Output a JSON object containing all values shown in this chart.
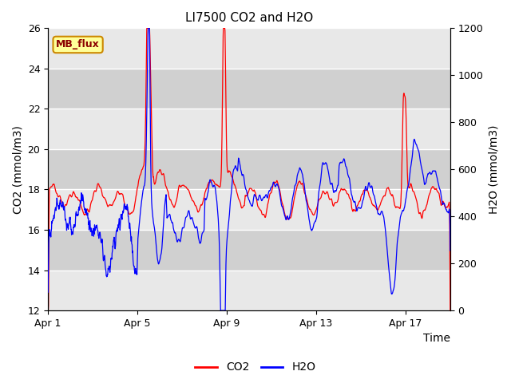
{
  "title": "LI7500 CO2 and H2O",
  "xlabel": "Time",
  "ylabel_left": "CO2 (mmol/m3)",
  "ylabel_right": "H2O (mmol/m3)",
  "ylim_left": [
    12,
    26
  ],
  "ylim_right": [
    0,
    1200
  ],
  "yticks_left": [
    12,
    14,
    16,
    18,
    20,
    22,
    24,
    26
  ],
  "yticks_right": [
    0,
    200,
    400,
    600,
    800,
    1000,
    1200
  ],
  "xtick_labels": [
    "Apr 1",
    "Apr 5",
    "Apr 9",
    "Apr 13",
    "Apr 17"
  ],
  "xtick_positions": [
    0,
    4,
    8,
    12,
    16
  ],
  "legend_labels": [
    "CO2",
    "H2O"
  ],
  "legend_colors": [
    "red",
    "blue"
  ],
  "annotation_text": "MB_flux",
  "annotation_bg": "#FFFF99",
  "annotation_border": "#CC8800",
  "annotation_text_color": "#8B0000",
  "axes_bg_light": "#DCDCDC",
  "axes_bg_dark": "#C8C8C8",
  "grid_color": "white",
  "co2_color": "red",
  "h2o_color": "blue",
  "n_days": 18,
  "title_fontsize": 11,
  "label_fontsize": 10,
  "tick_fontsize": 9
}
